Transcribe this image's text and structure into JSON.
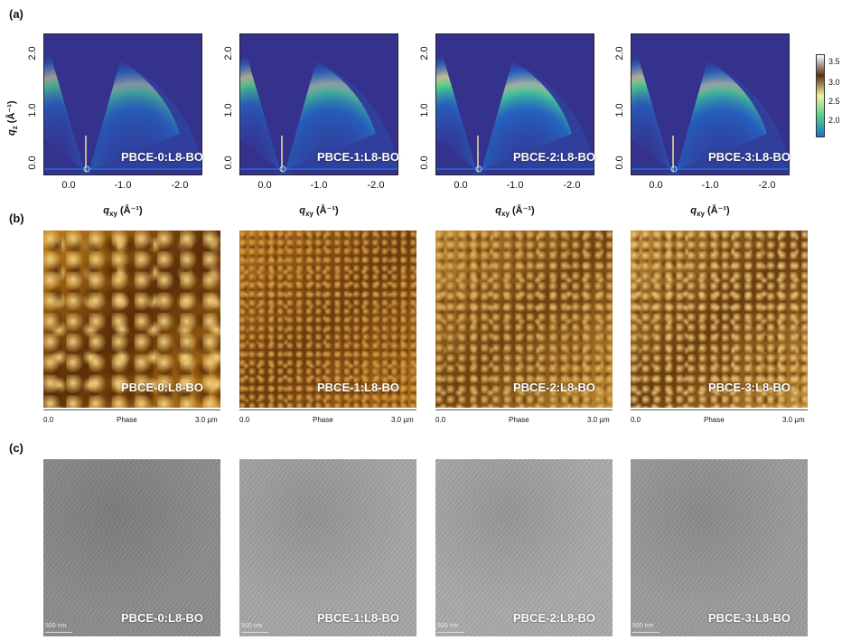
{
  "panels": {
    "a": {
      "label": "(a)",
      "y_axis_label": "q",
      "y_axis_sub": "z",
      "y_axis_unit": " (Å⁻¹)",
      "y_ticks": [
        "0.0",
        "1.0",
        "2.0"
      ],
      "x_axis_label": "q",
      "x_axis_sub": "xy",
      "x_axis_unit": " (Å⁻¹)",
      "x_ticks": [
        "0.0",
        "-1.0",
        "-2.0"
      ],
      "colorbar_ticks": [
        "3.5",
        "3.0",
        "2.5",
        "2.0"
      ],
      "colorbar_colors": [
        "#ffffff",
        "#5b2e12",
        "#f2f29a",
        "#4fd08a",
        "#1a74d6"
      ]
    },
    "b": {
      "label": "(b)",
      "scale_start": "0.0",
      "scale_mid": "Phase",
      "scale_end": "3.0 µm"
    },
    "c": {
      "label": "(c)",
      "scalebar_text": "500 nm"
    }
  },
  "samples": [
    "PBCE-0:L8-BO",
    "PBCE-1:L8-BO",
    "PBCE-2:L8-BO",
    "PBCE-3:L8-BO"
  ]
}
